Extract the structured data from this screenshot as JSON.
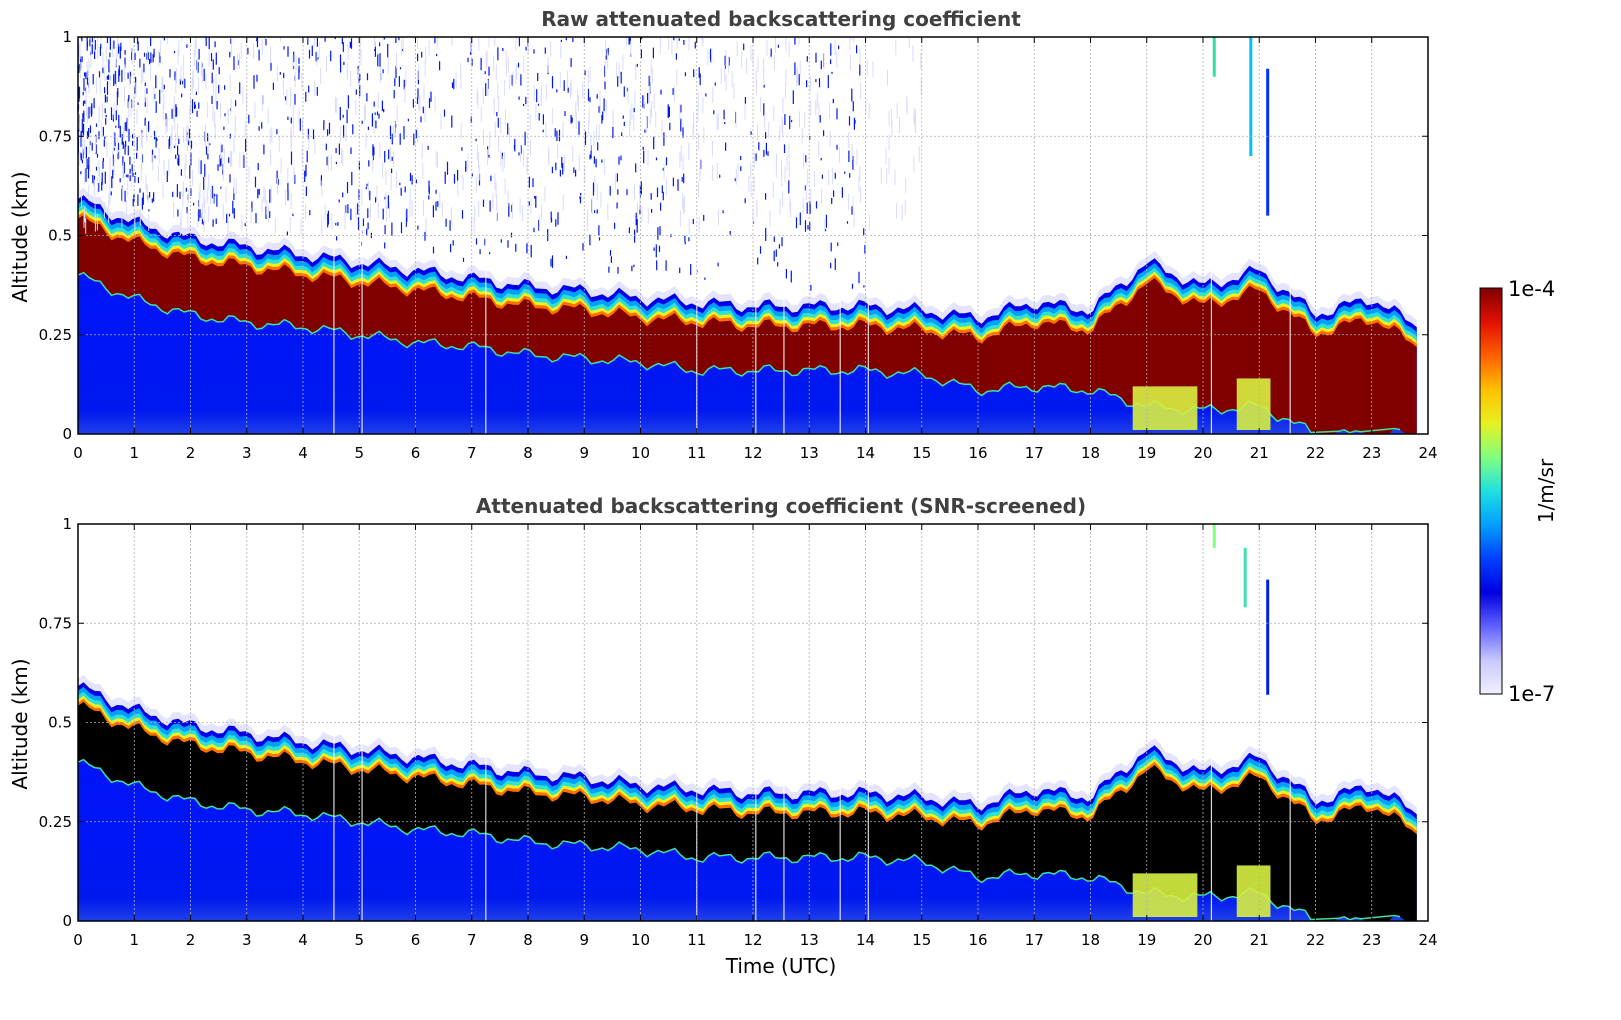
{
  "chart_data": [
    {
      "type": "heatmap",
      "title": "Raw attenuated backscattering coefficient",
      "xlabel": "",
      "ylabel": "Altitude (km)",
      "xlim": [
        0,
        24
      ],
      "ylim": [
        0,
        1
      ],
      "xticks": [
        "0",
        "1",
        "2",
        "3",
        "4",
        "5",
        "6",
        "7",
        "8",
        "9",
        "10",
        "11",
        "12",
        "13",
        "14",
        "15",
        "16",
        "17",
        "18",
        "19",
        "20",
        "21",
        "22",
        "23",
        "24"
      ],
      "yticks": [
        "0",
        "0.25",
        "0.5",
        "0.75",
        "1"
      ],
      "grid": true,
      "saturated_color": "#800000",
      "layer": {
        "hours": [
          0,
          1,
          2,
          3,
          4,
          5,
          6,
          7,
          8,
          9,
          10,
          11,
          12,
          13,
          14,
          15,
          16,
          17,
          18,
          19,
          20,
          21,
          22,
          23,
          23.8
        ],
        "top_km": [
          0.58,
          0.52,
          0.48,
          0.46,
          0.44,
          0.42,
          0.4,
          0.38,
          0.36,
          0.35,
          0.33,
          0.32,
          0.31,
          0.31,
          0.31,
          0.3,
          0.28,
          0.32,
          0.3,
          0.42,
          0.36,
          0.4,
          0.29,
          0.33,
          0.26
        ],
        "base_km": [
          0.4,
          0.34,
          0.3,
          0.28,
          0.27,
          0.25,
          0.23,
          0.22,
          0.2,
          0.19,
          0.18,
          0.16,
          0.16,
          0.16,
          0.16,
          0.15,
          0.11,
          0.12,
          0.11,
          0.07,
          0.06,
          0.07,
          0.0,
          0.0,
          0.0
        ]
      }
    },
    {
      "type": "heatmap",
      "title": "Attenuated backscattering coefficient (SNR-screened)",
      "xlabel": "Time (UTC)",
      "ylabel": "Altitude (km)",
      "xlim": [
        0,
        24
      ],
      "ylim": [
        0,
        1
      ],
      "xticks": [
        "0",
        "1",
        "2",
        "3",
        "4",
        "5",
        "6",
        "7",
        "8",
        "9",
        "10",
        "11",
        "12",
        "13",
        "14",
        "15",
        "16",
        "17",
        "18",
        "19",
        "20",
        "21",
        "22",
        "23",
        "24"
      ],
      "yticks": [
        "0",
        "0.25",
        "0.5",
        "0.75",
        "1"
      ],
      "grid": true,
      "saturated_color": "#000000"
    }
  ],
  "colorbar": {
    "label": "1/m/sr",
    "max_label": "1e-4",
    "min_label": "1e-7",
    "colors": [
      "#800000",
      "#e01000",
      "#ff6000",
      "#ffc000",
      "#e8f020",
      "#80ff80",
      "#20e0e0",
      "#00a0ff",
      "#0040ff",
      "#0000e0",
      "#6060ff",
      "#c8c8ff",
      "#f0f0ff"
    ]
  }
}
